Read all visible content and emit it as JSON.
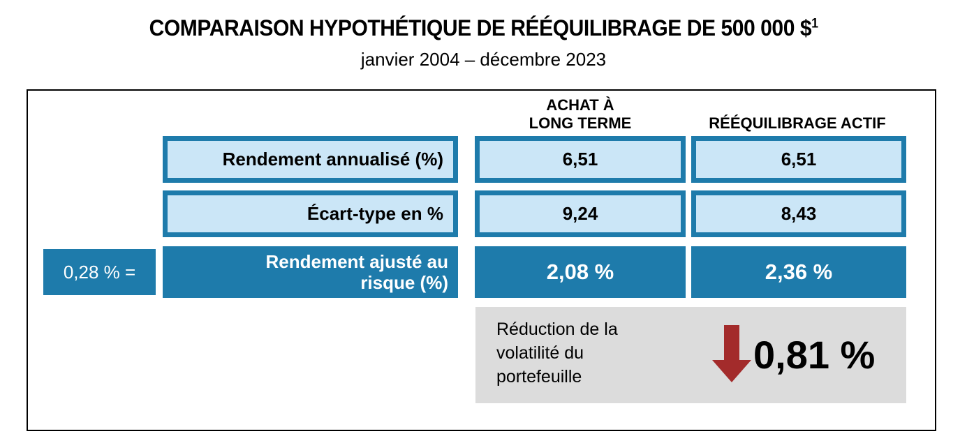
{
  "header": {
    "title": "COMPARAISON HYPOTHÉTIQUE DE RÉÉQUILIBRAGE DE 500 000 $",
    "title_superscript": "1",
    "subtitle": "janvier 2004 – décembre 2023"
  },
  "table": {
    "col_headers": {
      "col1_line1": "ACHAT À",
      "col1_line2": "LONG TERME",
      "col2": "RÉÉQUILIBRAGE ACTIF"
    },
    "row1": {
      "label": "Rendement annualisé (%)",
      "col1": "6,51",
      "col2": "6,51"
    },
    "row2": {
      "label": "Écart-type en %",
      "col1": "9,24",
      "col2": "8,43"
    },
    "row3": {
      "label_line1": "Rendement ajusté au",
      "label_line2": "risque (%)",
      "col1": "2,08 %",
      "col2": "2,36 %"
    },
    "difference_label": "0,28 % =",
    "summary": {
      "line1": "Réduction de la",
      "line2": "volatilité du",
      "line3": "portefeuille",
      "value": "0,81 %"
    }
  },
  "colors": {
    "dark_blue": "#1E7BAB",
    "light_blue": "#CBE6F7",
    "gray_panel": "#DCDCDC",
    "arrow_red": "#A32B2B",
    "frame_border": "#000000"
  },
  "chart_data": {
    "type": "table",
    "title": "COMPARAISON HYPOTHÉTIQUE DE RÉÉQUILIBRAGE DE 500 000 $1",
    "subtitle": "janvier 2004 – décembre 2023",
    "columns": [
      "ACHAT À LONG TERME",
      "RÉÉQUILIBRAGE ACTIF"
    ],
    "rows": [
      {
        "label": "Rendement annualisé (%)",
        "values": [
          6.51,
          6.51
        ]
      },
      {
        "label": "Écart-type en %",
        "values": [
          9.24,
          8.43
        ]
      },
      {
        "label": "Rendement ajusté au risque (%)",
        "values": [
          2.08,
          2.36
        ],
        "unit": "%"
      }
    ],
    "annotations": [
      {
        "text": "0,28 % =",
        "value": 0.28,
        "attached_to": "Rendement ajusté au risque (%)"
      },
      {
        "text": "Réduction de la volatilité du portefeuille",
        "value": 0.81,
        "display": "0,81 %",
        "icon": "red-down-arrow"
      }
    ],
    "legend_position": "none",
    "grid": false
  }
}
